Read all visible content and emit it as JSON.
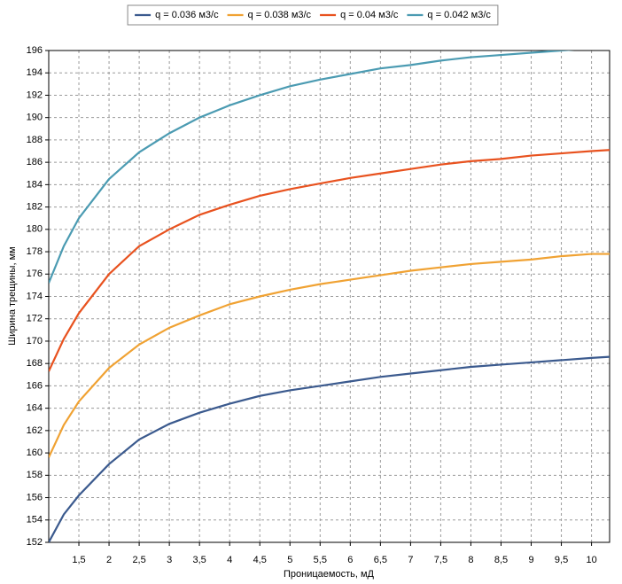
{
  "chart_data": {
    "type": "line",
    "x_label": "Проницаемость, мД",
    "y_label": "Ширина трещины, мм",
    "x": [
      1,
      1.25,
      1.5,
      2,
      2.5,
      3,
      3.5,
      4,
      4.5,
      5,
      5.5,
      6,
      6.5,
      7,
      7.5,
      8,
      8.5,
      9,
      9.5,
      10,
      10.3
    ],
    "series": [
      {
        "name": "q = 0.036 м3/с",
        "color": "#3b5a8e",
        "values": [
          152.0,
          154.5,
          156.2,
          159.0,
          161.2,
          162.6,
          163.6,
          164.4,
          165.1,
          165.6,
          166.0,
          166.4,
          166.8,
          167.1,
          167.4,
          167.7,
          167.9,
          168.1,
          168.3,
          168.5,
          168.6
        ]
      },
      {
        "name": "q = 0.038 м3/с",
        "color": "#f0a233",
        "values": [
          159.6,
          162.5,
          164.6,
          167.6,
          169.7,
          171.2,
          172.3,
          173.3,
          174.0,
          174.6,
          175.1,
          175.5,
          175.9,
          176.3,
          176.6,
          176.9,
          177.1,
          177.3,
          177.6,
          177.8,
          177.8
        ]
      },
      {
        "name": "q = 0.04 м3/с",
        "color": "#e8521f",
        "values": [
          167.3,
          170.2,
          172.5,
          176.0,
          178.5,
          180.0,
          181.3,
          182.2,
          183.0,
          183.6,
          184.1,
          184.6,
          185.0,
          185.4,
          185.8,
          186.1,
          186.3,
          186.6,
          186.8,
          187.0,
          187.1
        ]
      },
      {
        "name": "q = 0.042 м3/с",
        "color": "#4b9bb2",
        "values": [
          175.2,
          178.5,
          181.0,
          184.5,
          186.9,
          188.6,
          190.0,
          191.1,
          192.0,
          192.8,
          193.4,
          193.9,
          194.4,
          194.7,
          195.1,
          195.4,
          195.6,
          195.8,
          196.0,
          196.2,
          196.3
        ]
      }
    ],
    "xlim": [
      1,
      10.3
    ],
    "ylim": [
      152,
      196
    ],
    "xticks": [
      {
        "value": 1.5,
        "label": "1,5"
      },
      2,
      {
        "value": 2.5,
        "label": "2,5"
      },
      3,
      {
        "value": 3.5,
        "label": "3,5"
      },
      4,
      {
        "value": 4.5,
        "label": "4,5"
      },
      5,
      {
        "value": 5.5,
        "label": "5,5"
      },
      6,
      {
        "value": 6.5,
        "label": "6,5"
      },
      7,
      {
        "value": 7.5,
        "label": "7,5"
      },
      8,
      {
        "value": 8.5,
        "label": "8,5"
      },
      9,
      {
        "value": 9.5,
        "label": "9,5"
      },
      10
    ],
    "yticks": [
      152,
      154,
      156,
      158,
      160,
      162,
      164,
      166,
      168,
      170,
      172,
      174,
      176,
      178,
      180,
      182,
      184,
      186,
      188,
      190,
      192,
      194,
      196
    ],
    "grid": true,
    "legend": "top"
  }
}
